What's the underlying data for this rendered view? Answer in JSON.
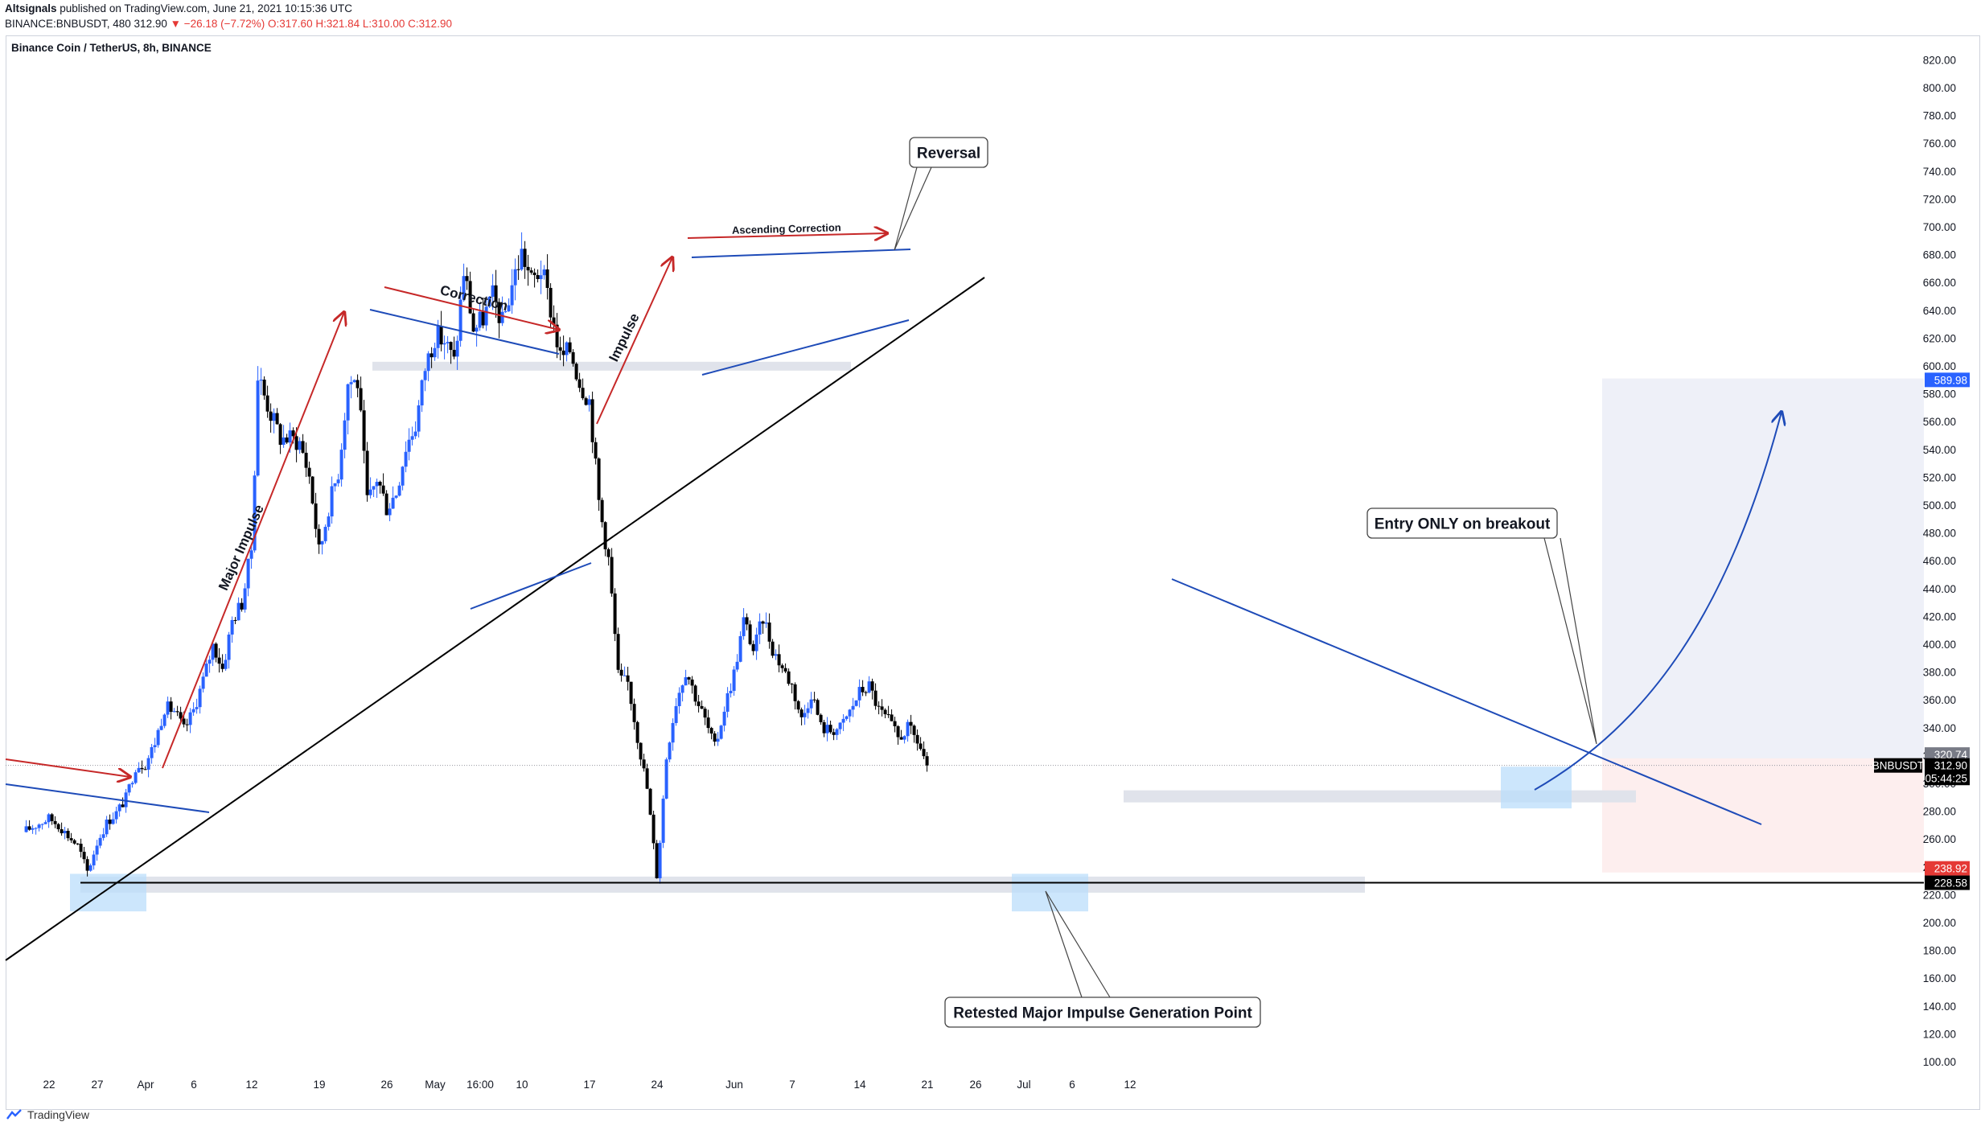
{
  "header": {
    "author": "Altsignals",
    "published": " published on TradingView.com, June 21, 2021 10:15:36 UTC",
    "symbol_line_prefix": "BINANCE:BNBUSDT, 480  312.90 ",
    "change": "▼ −26.18 (−7.72%)",
    "ohlc": " O:317.60 H:321.84 L:310.00 C:312.90"
  },
  "chart_title": "Binance Coin / TetherUS, 8h, BINANCE",
  "footer_brand": "TradingView",
  "chart_data": {
    "type": "candlestick",
    "symbol": "BNBUSDT",
    "interval": "8h",
    "exchange": "BINANCE",
    "ylim": [
      92,
      828
    ],
    "y_ticks": [
      100,
      120,
      140,
      160,
      180,
      200,
      220,
      240,
      260,
      280,
      300,
      320,
      340,
      360,
      380,
      400,
      420,
      440,
      460,
      480,
      500,
      520,
      540,
      560,
      580,
      600,
      620,
      640,
      660,
      680,
      700,
      720,
      740,
      760,
      780,
      800,
      820
    ],
    "y_tick_labels": [
      "100.00",
      "120.00",
      "140.00",
      "160.00",
      "180.00",
      "200.00",
      "220.00",
      "240.00",
      "260.00",
      "280.00",
      "300.00",
      "320.00",
      "340.00",
      "360.00",
      "380.00",
      "400.00",
      "420.00",
      "440.00",
      "460.00",
      "480.00",
      "500.00",
      "520.00",
      "540.00",
      "560.00",
      "580.00",
      "600.00",
      "620.00",
      "640.00",
      "660.00",
      "680.00",
      "700.00",
      "720.00",
      "740.00",
      "760.00",
      "780.00",
      "800.00",
      "820.00"
    ],
    "x_ticks": [
      {
        "label": "22",
        "day": 0
      },
      {
        "label": "27",
        "day": 5
      },
      {
        "label": "Apr",
        "day": 10
      },
      {
        "label": "6",
        "day": 15
      },
      {
        "label": "12",
        "day": 21
      },
      {
        "label": "19",
        "day": 28
      },
      {
        "label": "26",
        "day": 35
      },
      {
        "label": "May",
        "day": 40
      },
      {
        "label": "16:00",
        "day": 44.67
      },
      {
        "label": "10",
        "day": 49
      },
      {
        "label": "17",
        "day": 56
      },
      {
        "label": "24",
        "day": 63
      },
      {
        "label": "Jun",
        "day": 71
      },
      {
        "label": "7",
        "day": 77
      },
      {
        "label": "14",
        "day": 84
      },
      {
        "label": "21",
        "day": 91
      },
      {
        "label": "26",
        "day": 96
      },
      {
        "label": "Jul",
        "day": 101
      },
      {
        "label": "6",
        "day": 106
      },
      {
        "label": "12",
        "day": 112
      }
    ],
    "price_keypoints": [
      [
        -2.7,
        265
      ],
      [
        0,
        275
      ],
      [
        1,
        270
      ],
      [
        2,
        262
      ],
      [
        3,
        255
      ],
      [
        4,
        236
      ],
      [
        5,
        258
      ],
      [
        6,
        272
      ],
      [
        7,
        279
      ],
      [
        8,
        290
      ],
      [
        9,
        313
      ],
      [
        10,
        314
      ],
      [
        11,
        330
      ],
      [
        12,
        355
      ],
      [
        13,
        352
      ],
      [
        14,
        338
      ],
      [
        15,
        353
      ],
      [
        16,
        375
      ],
      [
        17,
        400
      ],
      [
        18,
        382
      ],
      [
        19,
        418
      ],
      [
        20,
        430
      ],
      [
        21,
        470
      ],
      [
        21.7,
        605
      ],
      [
        22,
        585
      ],
      [
        23,
        565
      ],
      [
        24,
        548
      ],
      [
        25,
        548
      ],
      [
        26,
        545
      ],
      [
        27,
        520
      ],
      [
        28,
        465
      ],
      [
        29,
        500
      ],
      [
        30,
        525
      ],
      [
        31,
        590
      ],
      [
        32,
        588
      ],
      [
        33,
        500
      ],
      [
        34,
        520
      ],
      [
        35,
        498
      ],
      [
        36,
        510
      ],
      [
        37,
        543
      ],
      [
        38,
        558
      ],
      [
        39,
        600
      ],
      [
        40,
        622
      ],
      [
        41,
        618
      ],
      [
        42,
        602
      ],
      [
        43,
        670
      ],
      [
        44,
        625
      ],
      [
        45,
        635
      ],
      [
        46,
        650
      ],
      [
        47,
        630
      ],
      [
        48,
        660
      ],
      [
        49,
        682
      ],
      [
        50,
        660
      ],
      [
        51,
        670
      ],
      [
        52,
        640
      ],
      [
        53,
        605
      ],
      [
        54,
        612
      ],
      [
        55,
        588
      ],
      [
        56,
        575
      ],
      [
        57,
        500
      ],
      [
        58,
        460
      ],
      [
        59,
        375
      ],
      [
        60,
        372
      ],
      [
        61,
        332
      ],
      [
        62,
        295
      ],
      [
        63,
        232
      ],
      [
        64,
        322
      ],
      [
        65,
        360
      ],
      [
        66,
        382
      ],
      [
        67,
        362
      ],
      [
        68,
        345
      ],
      [
        69,
        325
      ],
      [
        70,
        355
      ],
      [
        71,
        380
      ],
      [
        72,
        418
      ],
      [
        73,
        395
      ],
      [
        74,
        420
      ],
      [
        75,
        396
      ],
      [
        76,
        383
      ],
      [
        77,
        370
      ],
      [
        78,
        345
      ],
      [
        79,
        366
      ],
      [
        80,
        340
      ],
      [
        81,
        338
      ],
      [
        82,
        340
      ],
      [
        83,
        352
      ],
      [
        84,
        366
      ],
      [
        85,
        370
      ],
      [
        86,
        352
      ],
      [
        87,
        345
      ],
      [
        88,
        332
      ],
      [
        89,
        340
      ],
      [
        90,
        330
      ],
      [
        91,
        312.9
      ]
    ],
    "series": [],
    "price_labels": [
      {
        "label": "589.98",
        "value": 589.98,
        "color": "#2962ff"
      },
      {
        "label": "320.74",
        "value": 320.74,
        "color": "#787b86"
      },
      {
        "label": "312.90",
        "value": 312.9,
        "color": "#000000"
      },
      {
        "label": "05:44:25",
        "value": 303.9,
        "color": "#000000"
      },
      {
        "label": "238.92",
        "value": 238.92,
        "color": "#e53935"
      },
      {
        "label": "228.58",
        "value": 228.58,
        "color": "#000000"
      }
    ],
    "symbol_label": "BNBUSDT",
    "annotations": {
      "major_impulse": "Major Impulse",
      "correction": "Correction",
      "impulse": "Impulse",
      "ascending_correction": "Ascending Correction",
      "reversal": "Reversal",
      "entry": "Entry ONLY on breakout",
      "retest": "Retested Major Impulse Generation Point"
    },
    "colors": {
      "up": "#2962ff",
      "down": "#000000",
      "trendline_blue": "#1e4bb8",
      "arrow_red": "#c62828",
      "support_zone": "#e0e3eb",
      "highlight_zone": "#bbdefb",
      "target_zone": "#eef0f8",
      "stop_zone": "#fdeeee"
    },
    "grid": false
  }
}
